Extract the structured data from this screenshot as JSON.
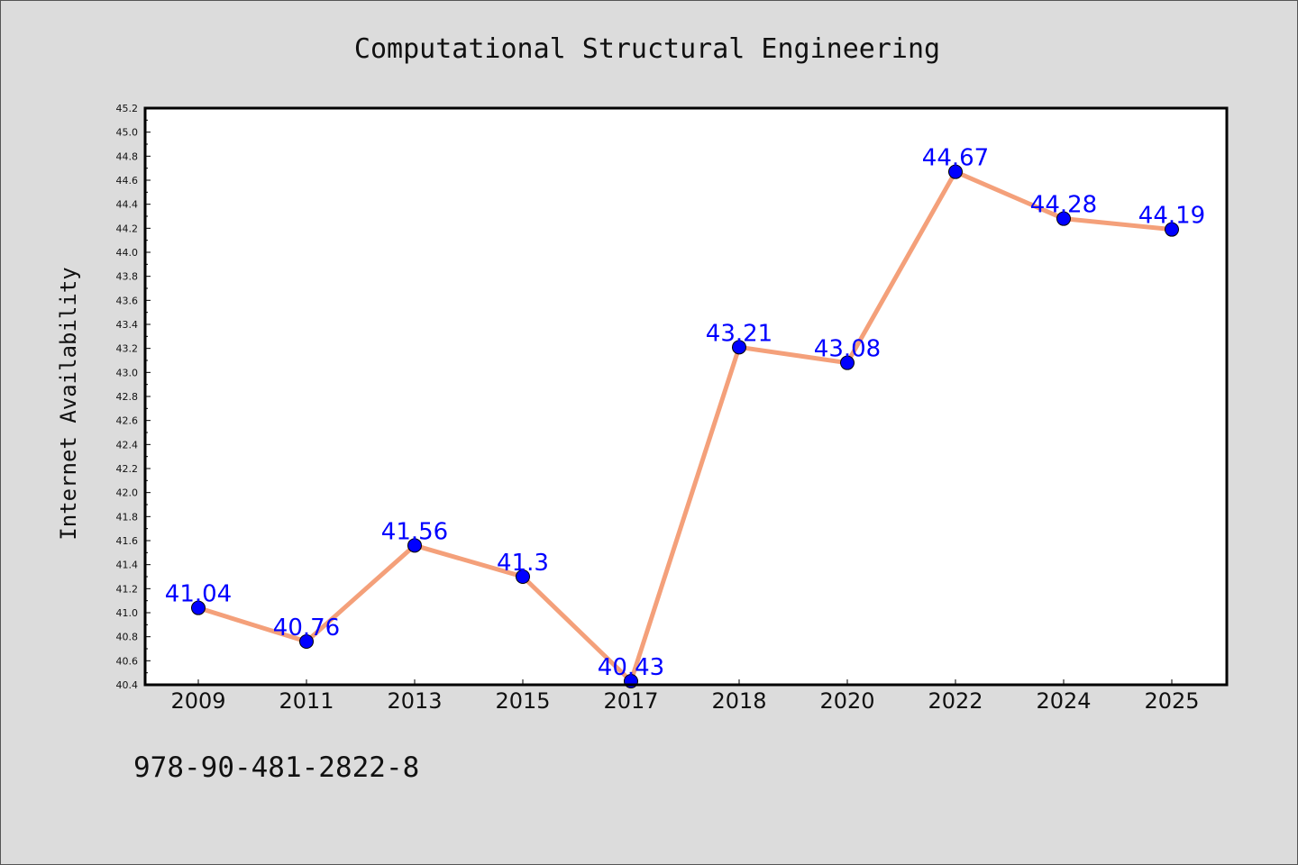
{
  "chart_data": {
    "type": "line",
    "title": "Computational Structural Engineering",
    "xlabel": "",
    "ylabel": "Internet Availability",
    "categories": [
      "2009",
      "2011",
      "2013",
      "2015",
      "2017",
      "2018",
      "2020",
      "2022",
      "2024",
      "2025"
    ],
    "values": [
      41.04,
      40.76,
      41.56,
      41.3,
      40.43,
      43.21,
      43.08,
      44.67,
      44.28,
      44.19
    ],
    "data_labels": [
      "41.04",
      "40.76",
      "41.56",
      "41.3",
      "40.43",
      "43.21",
      "43.08",
      "44.67",
      "44.28",
      "44.19"
    ],
    "ylim": [
      40.4,
      45.2
    ],
    "yticks": [
      40.4,
      40.6,
      40.8,
      41.0,
      41.2,
      41.4,
      41.6,
      41.8,
      42.0,
      42.2,
      42.4,
      42.6,
      42.8,
      43.0,
      43.2,
      43.4,
      43.6,
      43.8,
      44.0,
      44.2,
      44.4,
      44.6,
      44.8,
      45.0,
      45.2
    ],
    "grid": false,
    "legend": "none",
    "colors": {
      "line": "#f4a07a",
      "marker": "#0000ff",
      "label": "#0000ff",
      "plot_bg": "#ffffff",
      "page_bg": "#dcdcdc"
    }
  },
  "footnote": "978-90-481-2822-8"
}
